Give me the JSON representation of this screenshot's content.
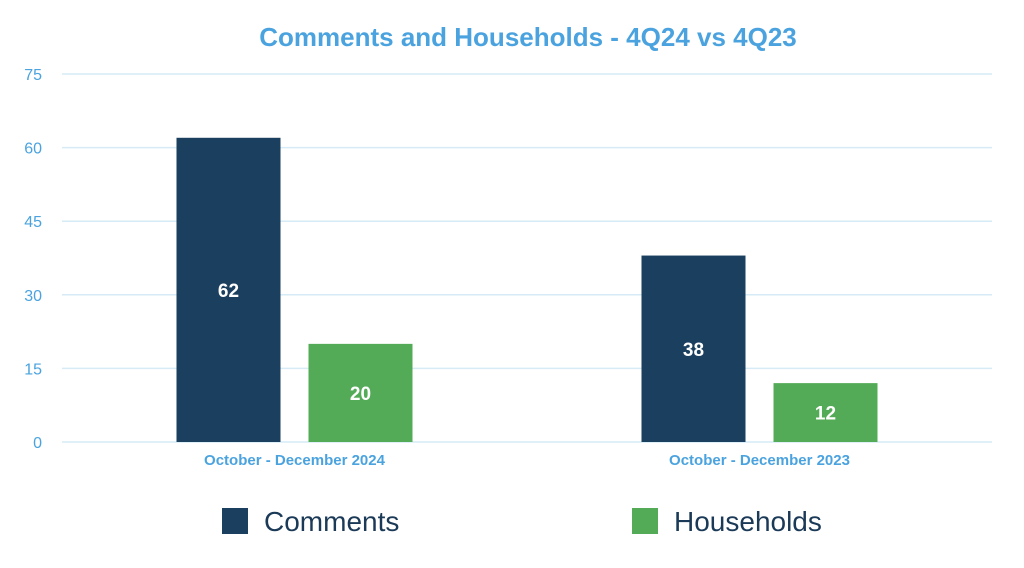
{
  "chart_data": {
    "type": "bar",
    "title": "Comments and Households - 4Q24 vs 4Q23",
    "categories": [
      "October - December 2024",
      "October - December 2023"
    ],
    "series": [
      {
        "name": "Comments",
        "values": [
          62,
          38
        ],
        "color": "#1b3f5f"
      },
      {
        "name": "Households",
        "values": [
          20,
          12
        ],
        "color": "#54ab57"
      }
    ],
    "ylim": [
      0,
      75
    ],
    "yticks": [
      "0",
      "15",
      "30",
      "45",
      "60",
      "75"
    ],
    "ytick_values": [
      0,
      15,
      30,
      45,
      60,
      75
    ],
    "grid": true,
    "legend_position": "bottom",
    "data_labels": true,
    "colors": {
      "title": "#4aa3df",
      "axis_text": "#4aa3df",
      "grid": "#d6ebf6",
      "legend_text": "#1b3a57"
    }
  }
}
